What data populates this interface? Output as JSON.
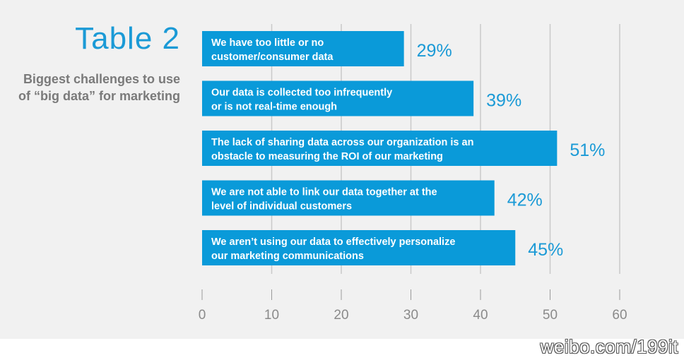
{
  "title": "Table 2",
  "subtitle_lines": [
    "Biggest challenges to use",
    "of “big data” for marketing"
  ],
  "watermark": "weibo.com/199it",
  "colors": {
    "bar": "#0a9ad9",
    "accent": "#1b9ad6",
    "grid": "#c9c9c9",
    "background": "#f1f1f1"
  },
  "chart_data": {
    "type": "bar",
    "orientation": "horizontal",
    "title": "Table 2",
    "subtitle": "Biggest challenges to use of “big data” for marketing",
    "categories": [
      [
        "We have too little or no",
        "customer/consumer data"
      ],
      [
        "Our data is collected too infrequently",
        "or is not real-time enough"
      ],
      [
        "The lack of sharing data across our organization is an",
        "obstacle to measuring the ROI of our marketing"
      ],
      [
        "We are not able to link our data together at the",
        "level of individual customers"
      ],
      [
        "We aren’t using our data to effectively personalize",
        "our marketing communications"
      ]
    ],
    "values": [
      29,
      39,
      51,
      42,
      45
    ],
    "value_labels": [
      "29%",
      "39%",
      "51%",
      "42%",
      "45%"
    ],
    "xlim": [
      0,
      60
    ],
    "xticks": [
      0,
      10,
      20,
      30,
      40,
      50,
      60
    ],
    "xlabel": "",
    "ylabel": "",
    "grid": true
  }
}
